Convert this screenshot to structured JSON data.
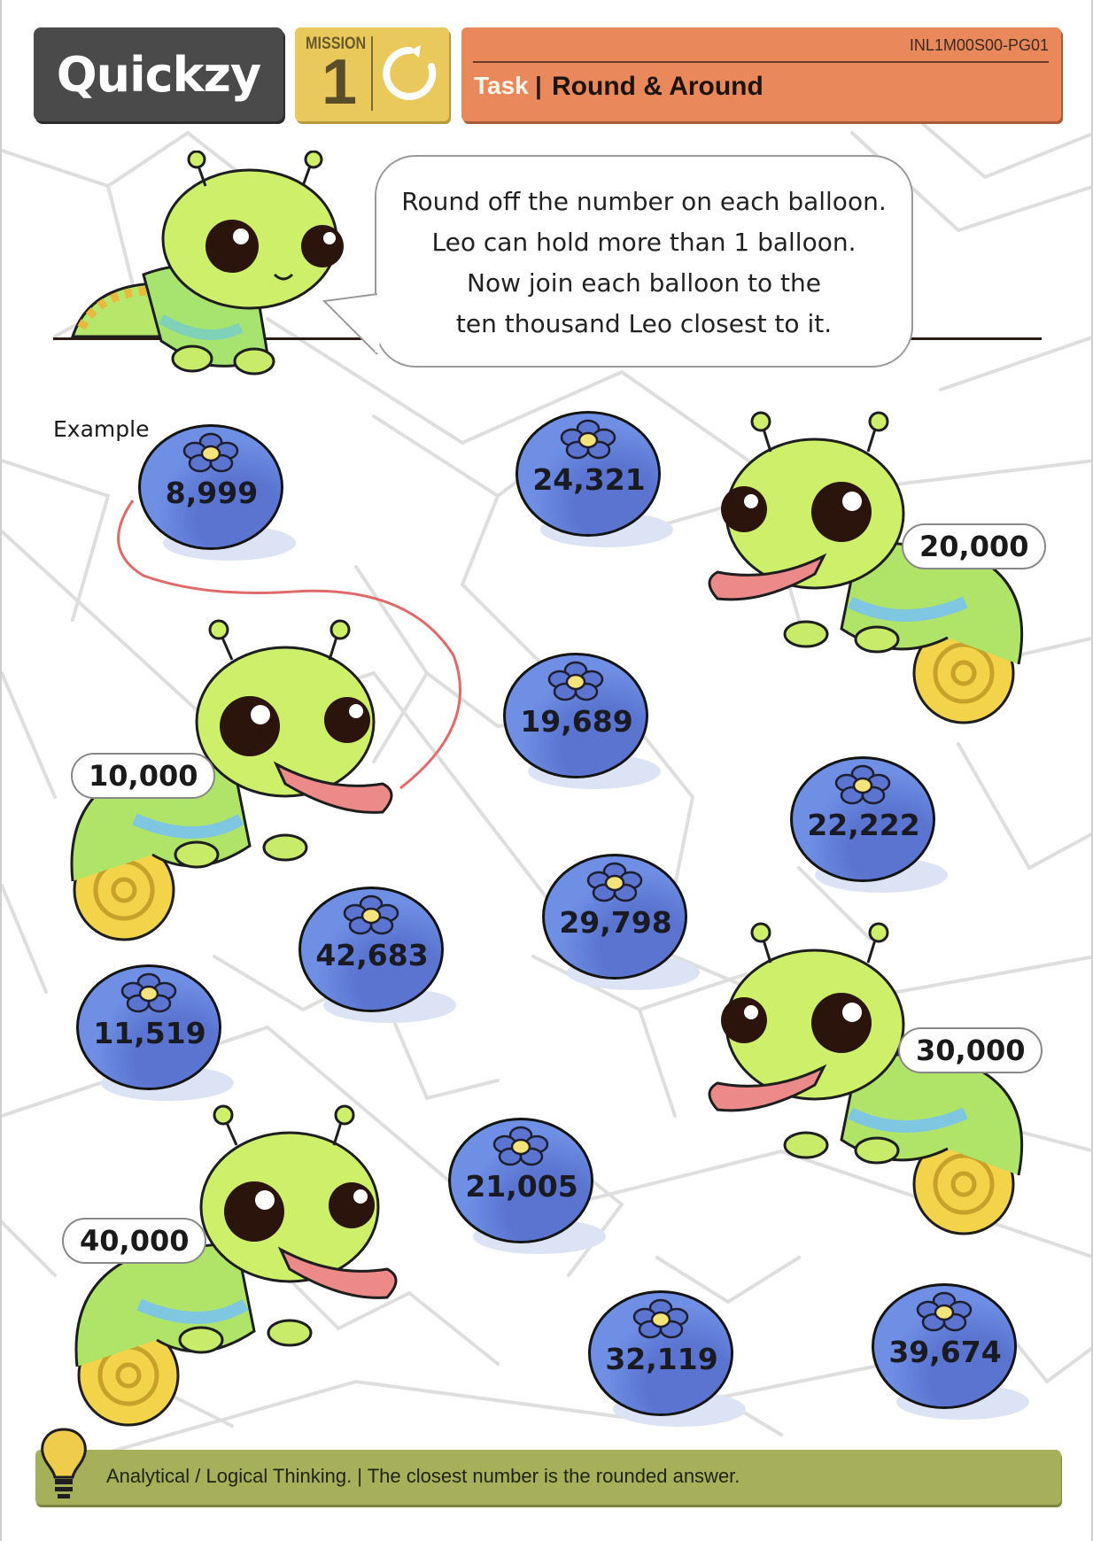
{
  "header": {
    "logo": "Quickzy",
    "mission_label": "MISSION",
    "mission_number": "1",
    "task_code": "INL1M00S00-PG01",
    "task_label": "Task",
    "task_separator": "|",
    "task_title": "Round & Around"
  },
  "instructions": {
    "lines": [
      "Round off the number on each balloon.",
      "Leo can hold more than 1 balloon.",
      "Now join each balloon to the",
      "ten thousand Leo closest to it."
    ]
  },
  "example_label": "Example",
  "balloons": [
    {
      "value": "8,999",
      "example": true
    },
    {
      "value": "24,321"
    },
    {
      "value": "19,689"
    },
    {
      "value": "22,222"
    },
    {
      "value": "29,798"
    },
    {
      "value": "42,683"
    },
    {
      "value": "11,519"
    },
    {
      "value": "21,005"
    },
    {
      "value": "32,119"
    },
    {
      "value": "39,674"
    }
  ],
  "leos": [
    {
      "label": "10,000"
    },
    {
      "label": "20,000"
    },
    {
      "label": "30,000"
    },
    {
      "label": "40,000"
    }
  ],
  "footer": {
    "text": "Analytical / Logical Thinking.  |  The closest number is the rounded answer."
  },
  "colors": {
    "balloon": "#6f8fe4",
    "leo_body": "#c8ec6a",
    "task_bar": "#e9885a",
    "mission_box": "#e9c85c",
    "footer_bar": "#a6b05a",
    "example_line": "#e06a6a"
  }
}
